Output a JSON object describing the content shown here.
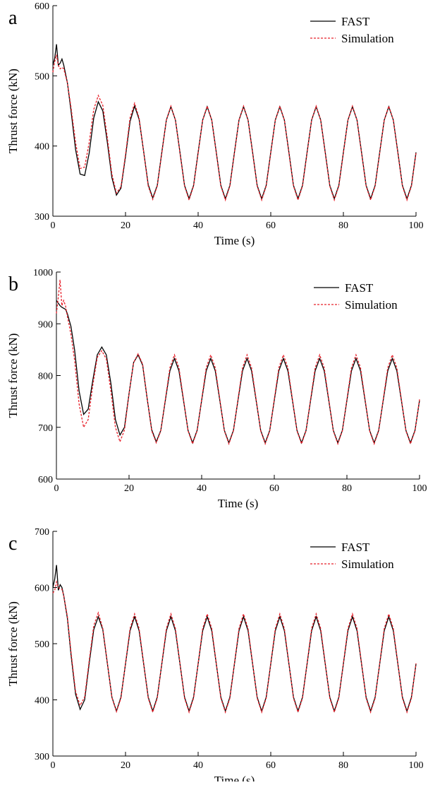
{
  "chart_data": [
    {
      "type": "line",
      "panel_label": "a",
      "xlabel": "Time (s)",
      "ylabel": "Thrust force (kN)",
      "xlim": [
        0,
        100
      ],
      "xticks": [
        0,
        20,
        40,
        60,
        80,
        100
      ],
      "ylim": [
        300,
        600
      ],
      "yticks": [
        300,
        400,
        500,
        600
      ],
      "legend": "upper right",
      "x": [
        0,
        0.5,
        1,
        1.5,
        2,
        2.5,
        3,
        4,
        5,
        6.25,
        7.5,
        8.75,
        10,
        11.25,
        12.5,
        13.75,
        15,
        16.25,
        17.5,
        18.75,
        20,
        21.25,
        22.5,
        23.75,
        25,
        26.25,
        27.5,
        28.75,
        30,
        31.25,
        32.5,
        33.75,
        35,
        36.25,
        37.5,
        38.75,
        40,
        41.25,
        42.5,
        43.75,
        45,
        46.25,
        47.5,
        48.75,
        50,
        51.25,
        52.5,
        53.75,
        55,
        56.25,
        57.5,
        58.75,
        60,
        61.25,
        62.5,
        63.75,
        65,
        66.25,
        67.5,
        68.75,
        70,
        71.25,
        72.5,
        73.75,
        75,
        76.25,
        77.5,
        78.75,
        80,
        81.25,
        82.5,
        83.75,
        85,
        86.25,
        87.5,
        88.75,
        90,
        91.25,
        92.5,
        93.75,
        95,
        96.25,
        97.5,
        98.75,
        100
      ],
      "series": [
        {
          "name": "FAST",
          "color": "#000000",
          "dash": false,
          "values": [
            515,
            525,
            545,
            515,
            518,
            524,
            515,
            490,
            450,
            395,
            360,
            358,
            390,
            440,
            463,
            450,
            405,
            355,
            330,
            340,
            385,
            435,
            457,
            438,
            392,
            345,
            326,
            344,
            391,
            437,
            456,
            437,
            391,
            344,
            325,
            344,
            391,
            437,
            456,
            437,
            391,
            344,
            325,
            344,
            391,
            437,
            456,
            437,
            391,
            344,
            325,
            344,
            391,
            437,
            456,
            437,
            391,
            344,
            325,
            344,
            391,
            437,
            456,
            437,
            391,
            344,
            325,
            344,
            391,
            437,
            456,
            437,
            391,
            344,
            325,
            344,
            391,
            437,
            456,
            437,
            391,
            344,
            325,
            344,
            391
          ]
        },
        {
          "name": "Simulation",
          "color": "#e8202a",
          "dash": true,
          "values": [
            505,
            520,
            530,
            515,
            510,
            512,
            510,
            490,
            455,
            405,
            368,
            370,
            405,
            452,
            472,
            458,
            412,
            360,
            333,
            342,
            388,
            440,
            461,
            440,
            392,
            343,
            324,
            343,
            390,
            437,
            457,
            437,
            390,
            343,
            323,
            343,
            390,
            437,
            457,
            437,
            390,
            343,
            323,
            343,
            390,
            437,
            457,
            437,
            390,
            343,
            323,
            343,
            390,
            437,
            457,
            437,
            390,
            343,
            323,
            343,
            390,
            437,
            457,
            437,
            390,
            343,
            323,
            343,
            390,
            437,
            457,
            437,
            390,
            343,
            323,
            343,
            390,
            437,
            457,
            437,
            390,
            343,
            323,
            343,
            390
          ]
        }
      ]
    },
    {
      "type": "line",
      "panel_label": "b",
      "xlabel": "Time (s)",
      "ylabel": "Thrust force (kN)",
      "xlim": [
        0,
        100
      ],
      "xticks": [
        0,
        20,
        40,
        60,
        80,
        100
      ],
      "ylim": [
        600,
        1000
      ],
      "yticks": [
        600,
        700,
        800,
        900,
        1000
      ],
      "legend": "upper right",
      "x": [
        0,
        0.5,
        1,
        1.5,
        2,
        2.5,
        3,
        4,
        5,
        6.25,
        7.5,
        8.75,
        10,
        11.25,
        12.5,
        13.75,
        15,
        16.25,
        17.5,
        18.75,
        20,
        21.25,
        22.5,
        23.75,
        25,
        26.25,
        27.5,
        28.75,
        30,
        31.25,
        32.5,
        33.75,
        35,
        36.25,
        37.5,
        38.75,
        40,
        41.25,
        42.5,
        43.75,
        45,
        46.25,
        47.5,
        48.75,
        50,
        51.25,
        52.5,
        53.75,
        55,
        56.25,
        57.5,
        58.75,
        60,
        61.25,
        62.5,
        63.75,
        65,
        66.25,
        67.5,
        68.75,
        70,
        71.25,
        72.5,
        73.75,
        75,
        76.25,
        77.5,
        78.75,
        80,
        81.25,
        82.5,
        83.75,
        85,
        86.25,
        87.5,
        88.75,
        90,
        91.25,
        92.5,
        93.75,
        95,
        96.25,
        97.5,
        98.75,
        100
      ],
      "series": [
        {
          "name": "FAST",
          "color": "#000000",
          "dash": false,
          "values": [
            945,
            940,
            935,
            932,
            930,
            928,
            920,
            895,
            850,
            770,
            725,
            735,
            790,
            840,
            855,
            840,
            785,
            715,
            685,
            700,
            765,
            825,
            840,
            820,
            755,
            695,
            672,
            694,
            752,
            809,
            833,
            809,
            752,
            694,
            670,
            694,
            752,
            809,
            833,
            809,
            752,
            694,
            670,
            694,
            752,
            809,
            833,
            809,
            752,
            694,
            670,
            694,
            752,
            809,
            833,
            809,
            752,
            694,
            670,
            694,
            752,
            809,
            833,
            809,
            752,
            694,
            670,
            694,
            752,
            809,
            833,
            809,
            752,
            694,
            670,
            694,
            752,
            809,
            833,
            809,
            752,
            694,
            670,
            694,
            752
          ]
        },
        {
          "name": "Simulation",
          "color": "#e8202a",
          "dash": true,
          "values": [
            920,
            950,
            985,
            935,
            945,
            935,
            915,
            880,
            830,
            745,
            700,
            715,
            780,
            835,
            848,
            832,
            770,
            700,
            672,
            695,
            765,
            825,
            842,
            822,
            756,
            693,
            670,
            693,
            754,
            815,
            840,
            815,
            754,
            693,
            668,
            693,
            754,
            815,
            840,
            815,
            754,
            693,
            668,
            693,
            754,
            815,
            840,
            815,
            754,
            693,
            668,
            693,
            754,
            815,
            840,
            815,
            754,
            693,
            668,
            693,
            754,
            815,
            840,
            815,
            754,
            693,
            668,
            693,
            754,
            815,
            840,
            815,
            754,
            693,
            668,
            693,
            754,
            815,
            840,
            815,
            754,
            693,
            668,
            693,
            754
          ]
        }
      ]
    },
    {
      "type": "line",
      "panel_label": "c",
      "xlabel": "Time (s)",
      "ylabel": "Thrust force (kN)",
      "xlim": [
        0,
        100
      ],
      "xticks": [
        0,
        20,
        40,
        60,
        80,
        100
      ],
      "ylim": [
        300,
        700
      ],
      "yticks": [
        300,
        400,
        500,
        600,
        700
      ],
      "legend": "upper right",
      "x": [
        0,
        0.5,
        1,
        1.5,
        2,
        2.5,
        3,
        4,
        5,
        6.25,
        7.5,
        8.75,
        10,
        11.25,
        12.5,
        13.75,
        15,
        16.25,
        17.5,
        18.75,
        20,
        21.25,
        22.5,
        23.75,
        25,
        26.25,
        27.5,
        28.75,
        30,
        31.25,
        32.5,
        33.75,
        35,
        36.25,
        37.5,
        38.75,
        40,
        41.25,
        42.5,
        43.75,
        45,
        46.25,
        47.5,
        48.75,
        50,
        51.25,
        52.5,
        53.75,
        55,
        56.25,
        57.5,
        58.75,
        60,
        61.25,
        62.5,
        63.75,
        65,
        66.25,
        67.5,
        68.75,
        70,
        71.25,
        72.5,
        73.75,
        75,
        76.25,
        77.5,
        78.75,
        80,
        81.25,
        82.5,
        83.75,
        85,
        86.25,
        87.5,
        88.75,
        90,
        91.25,
        92.5,
        93.75,
        95,
        96.25,
        97.5,
        98.75,
        100
      ],
      "series": [
        {
          "name": "FAST",
          "color": "#000000",
          "dash": false,
          "values": [
            600,
            615,
            640,
            595,
            605,
            600,
            585,
            545,
            480,
            410,
            383,
            400,
            465,
            525,
            548,
            525,
            465,
            405,
            380,
            405,
            464,
            523,
            548,
            523,
            464,
            405,
            380,
            405,
            464,
            523,
            548,
            523,
            464,
            405,
            380,
            405,
            464,
            523,
            548,
            523,
            464,
            405,
            380,
            405,
            464,
            523,
            548,
            523,
            464,
            405,
            380,
            405,
            464,
            523,
            548,
            523,
            464,
            405,
            380,
            405,
            464,
            523,
            548,
            523,
            464,
            405,
            380,
            405,
            464,
            523,
            548,
            523,
            464,
            405,
            380,
            405,
            464,
            523,
            548,
            523,
            464,
            405,
            380,
            405,
            464
          ]
        },
        {
          "name": "Simulation",
          "color": "#e8202a",
          "dash": true,
          "values": [
            590,
            595,
            610,
            600,
            598,
            597,
            585,
            548,
            485,
            415,
            390,
            405,
            470,
            532,
            555,
            527,
            466,
            404,
            379,
            403,
            465,
            527,
            553,
            527,
            465,
            403,
            378,
            403,
            465,
            527,
            553,
            527,
            465,
            403,
            378,
            403,
            465,
            527,
            553,
            527,
            465,
            403,
            378,
            403,
            465,
            527,
            553,
            527,
            465,
            403,
            378,
            403,
            465,
            527,
            553,
            527,
            465,
            403,
            378,
            403,
            465,
            527,
            553,
            527,
            465,
            403,
            378,
            403,
            465,
            527,
            553,
            527,
            465,
            403,
            378,
            403,
            465,
            527,
            553,
            527,
            465,
            403,
            378,
            403,
            465
          ]
        }
      ]
    }
  ]
}
